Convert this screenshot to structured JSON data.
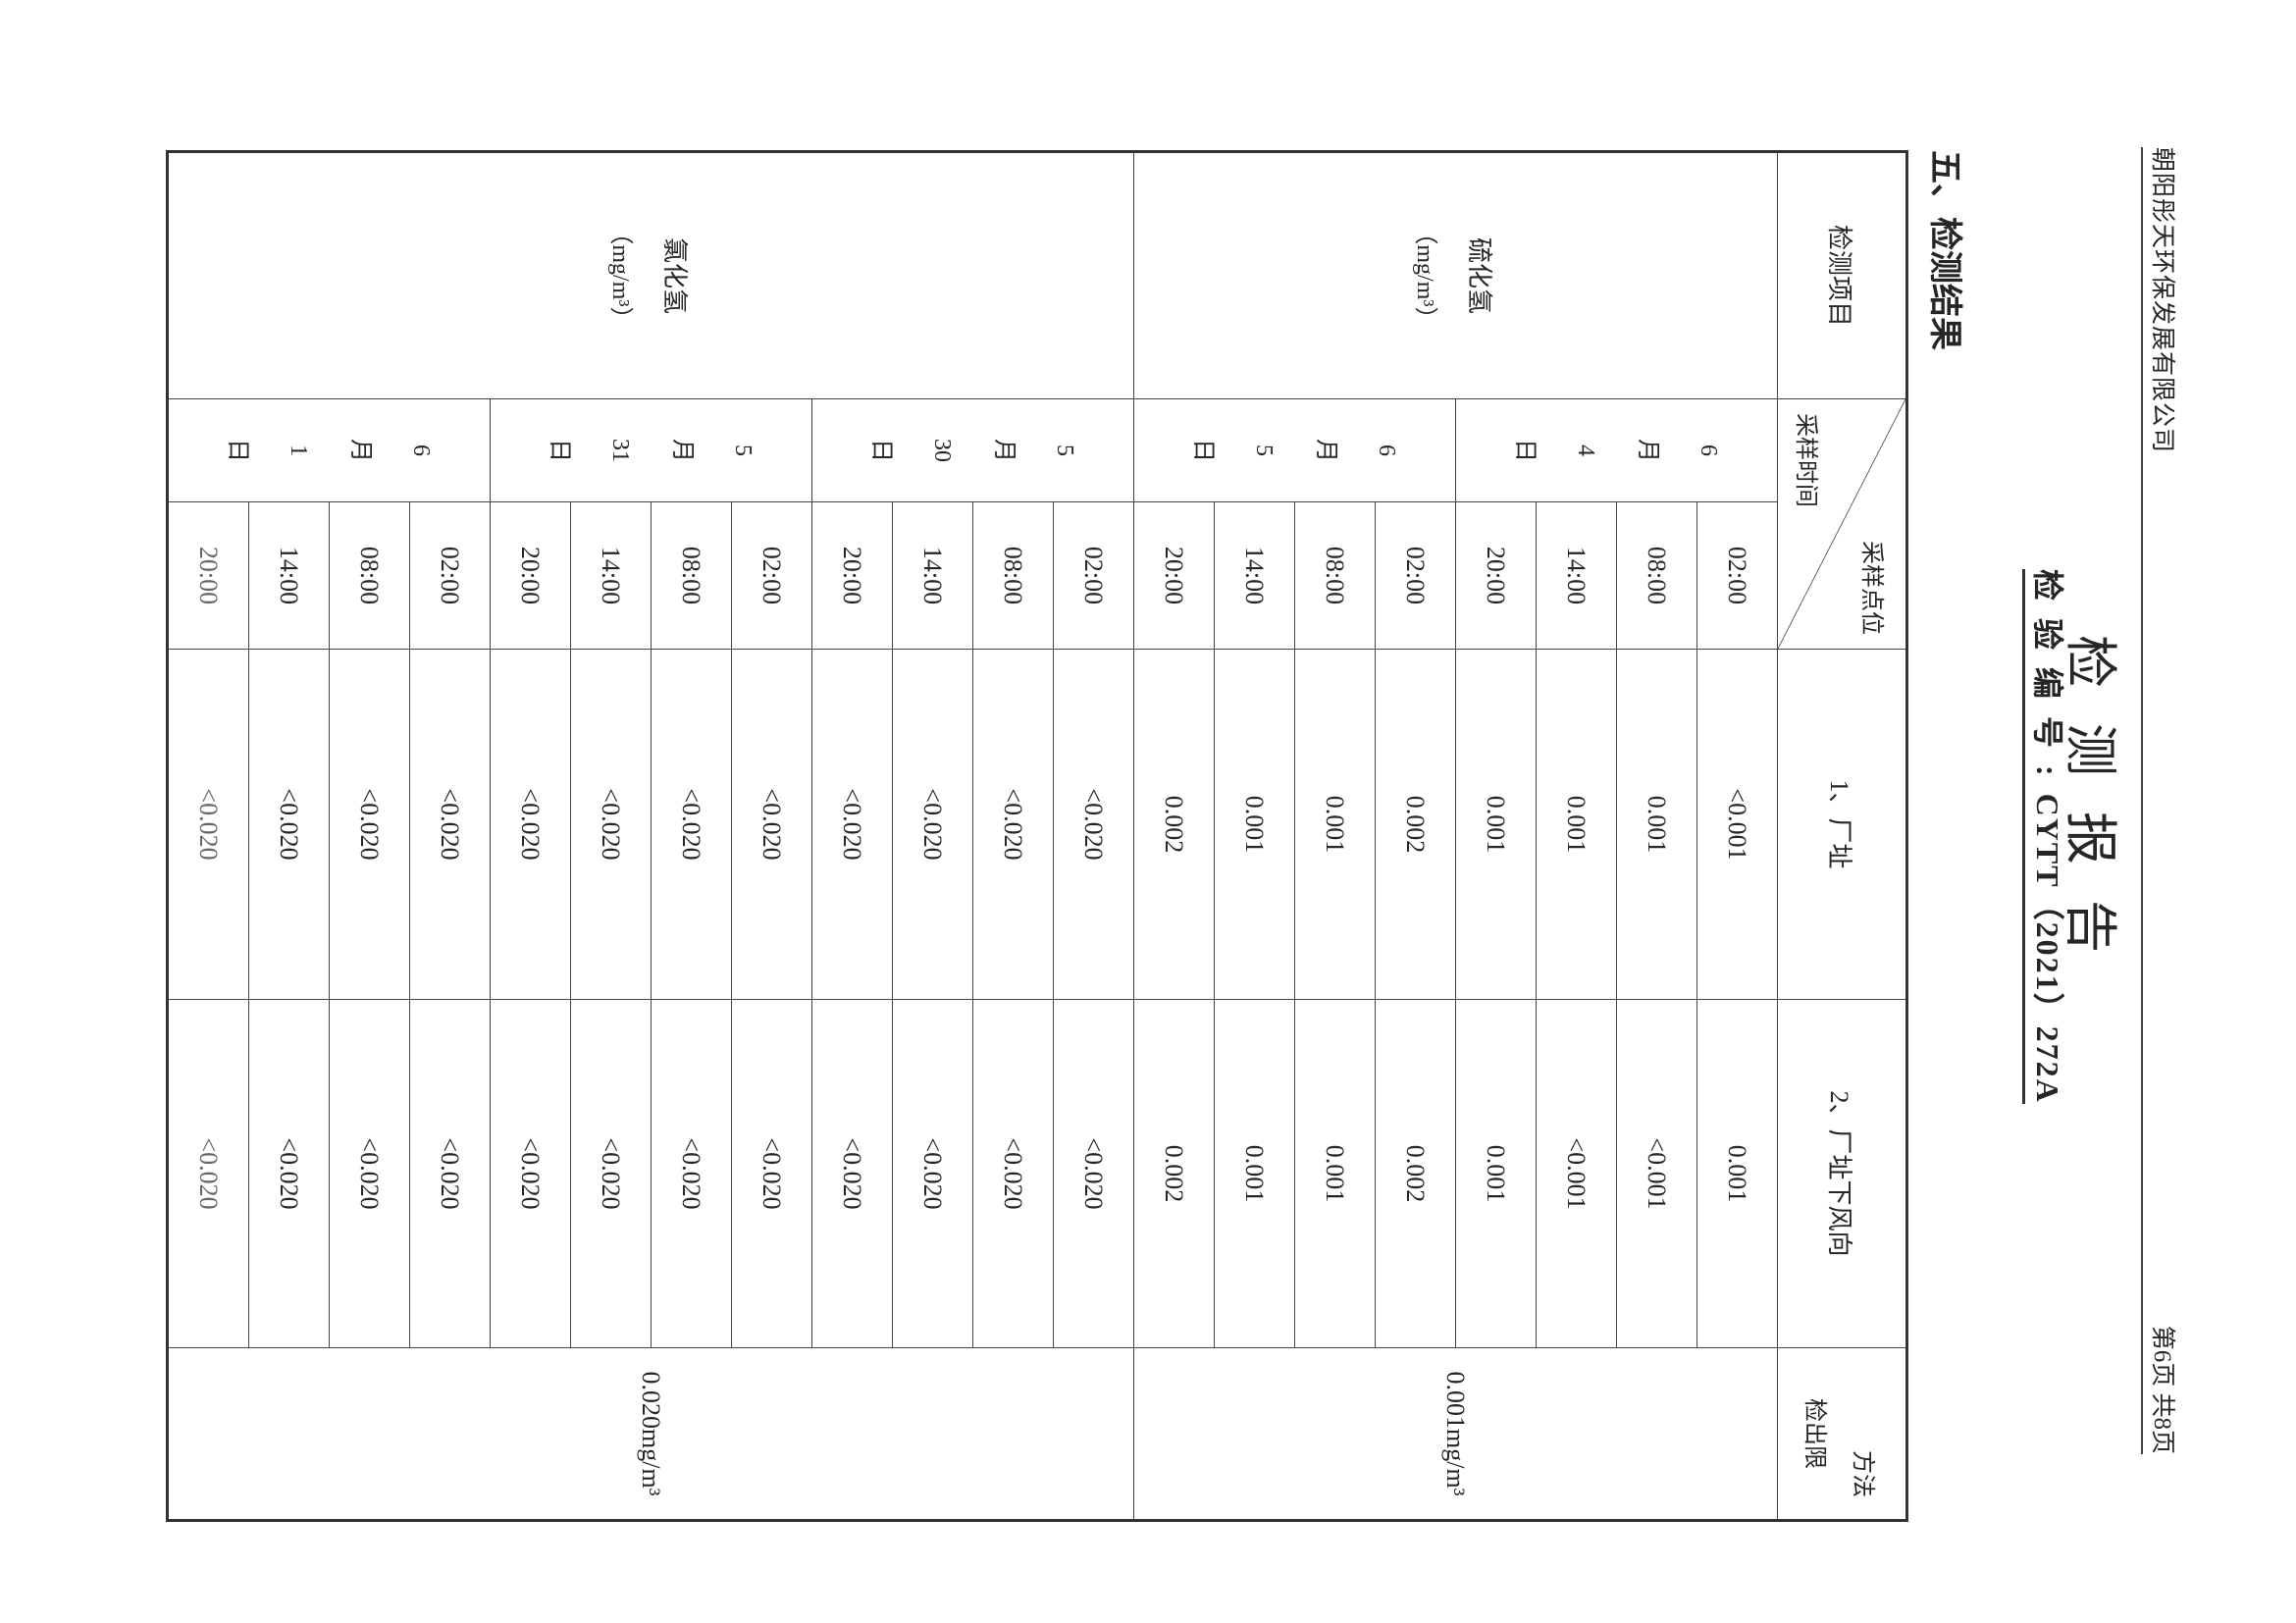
{
  "header": {
    "company": "朝阳彤天环保发展有限公司",
    "page_info": "第6页  共8页",
    "title": "检测报告",
    "report_no_label": "检验编号:",
    "report_no": "CYTT（2021）272A"
  },
  "section_title": "五、检测结果",
  "table": {
    "col_item": "检测项目",
    "diag_top": "采样点位",
    "diag_bottom": "采样时间",
    "site1": "1、厂址",
    "site2": "2、厂址下风向",
    "method_top": "方法",
    "method_bottom": "检出限",
    "groups": [
      {
        "item": "硫化氢",
        "unit": "（mg/m³）",
        "limit": "0.001mg/m³",
        "dates": [
          {
            "date": "6月4日",
            "rows": [
              [
                "02:00",
                "<0.001",
                "0.001"
              ],
              [
                "08:00",
                "0.001",
                "<0.001"
              ],
              [
                "14:00",
                "0.001",
                "<0.001"
              ],
              [
                "20:00",
                "0.001",
                "0.001"
              ]
            ]
          },
          {
            "date": "6月5日",
            "rows": [
              [
                "02:00",
                "0.002",
                "0.002"
              ],
              [
                "08:00",
                "0.001",
                "0.001"
              ],
              [
                "14:00",
                "0.001",
                "0.001"
              ],
              [
                "20:00",
                "0.002",
                "0.002"
              ]
            ]
          }
        ]
      },
      {
        "item": "氯化氢",
        "unit": "（mg/m³）",
        "limit": "0.020mg/m³",
        "dates": [
          {
            "date": "5月30日",
            "rows": [
              [
                "02:00",
                "<0.020",
                "<0.020"
              ],
              [
                "08:00",
                "<0.020",
                "<0.020"
              ],
              [
                "14:00",
                "<0.020",
                "<0.020"
              ],
              [
                "20:00",
                "<0.020",
                "<0.020"
              ]
            ]
          },
          {
            "date": "5月31日",
            "rows": [
              [
                "02:00",
                "<0.020",
                "<0.020"
              ],
              [
                "08:00",
                "<0.020",
                "<0.020"
              ],
              [
                "14:00",
                "<0.020",
                "<0.020"
              ],
              [
                "20:00",
                "<0.020",
                "<0.020"
              ]
            ]
          },
          {
            "date": "6月1日",
            "rows": [
              [
                "02:00",
                "<0.020",
                "<0.020"
              ],
              [
                "08:00",
                "<0.020",
                "<0.020"
              ],
              [
                "14:00",
                "<0.020",
                "<0.020"
              ],
              [
                "20:00",
                "<0.020",
                "<0.020"
              ]
            ]
          }
        ]
      }
    ]
  }
}
